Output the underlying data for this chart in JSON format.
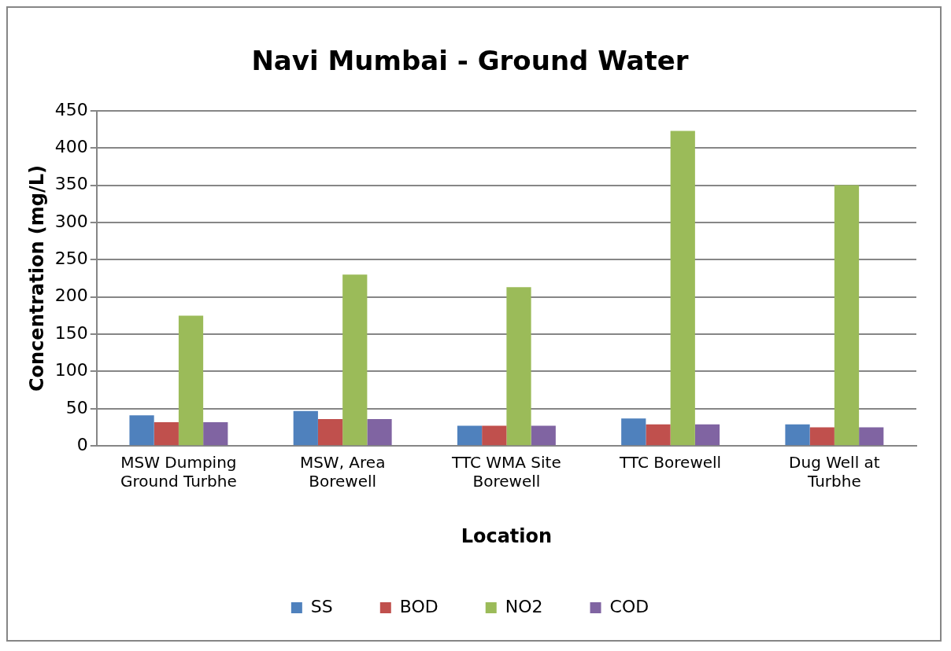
{
  "chart_data": {
    "type": "bar",
    "title": "Navi Mumbai - Ground Water",
    "xlabel": "Location",
    "ylabel": "Concentration (mg/L)",
    "categories": [
      "MSW Dumping Ground Turbhe",
      "MSW, Area Borewell",
      "TTC WMA Site Borewell",
      "TTC Borewell",
      "Dug Well at Turbhe"
    ],
    "series": [
      {
        "name": "SS",
        "color": "#4f81bd",
        "values": [
          41,
          47,
          27,
          37,
          29
        ]
      },
      {
        "name": "BOD",
        "color": "#c0504d",
        "values": [
          32,
          36,
          27,
          29,
          25
        ]
      },
      {
        "name": "NO2",
        "color": "#9bbb59",
        "values": [
          175,
          230,
          213,
          423,
          350
        ]
      },
      {
        "name": "COD",
        "color": "#8064a2",
        "values": [
          32,
          36,
          27,
          29,
          25
        ]
      }
    ],
    "ylim": [
      0,
      450
    ],
    "yticks": [
      0,
      50,
      100,
      150,
      200,
      250,
      300,
      350,
      400,
      450
    ],
    "grid": "y",
    "legend": "bottom"
  }
}
